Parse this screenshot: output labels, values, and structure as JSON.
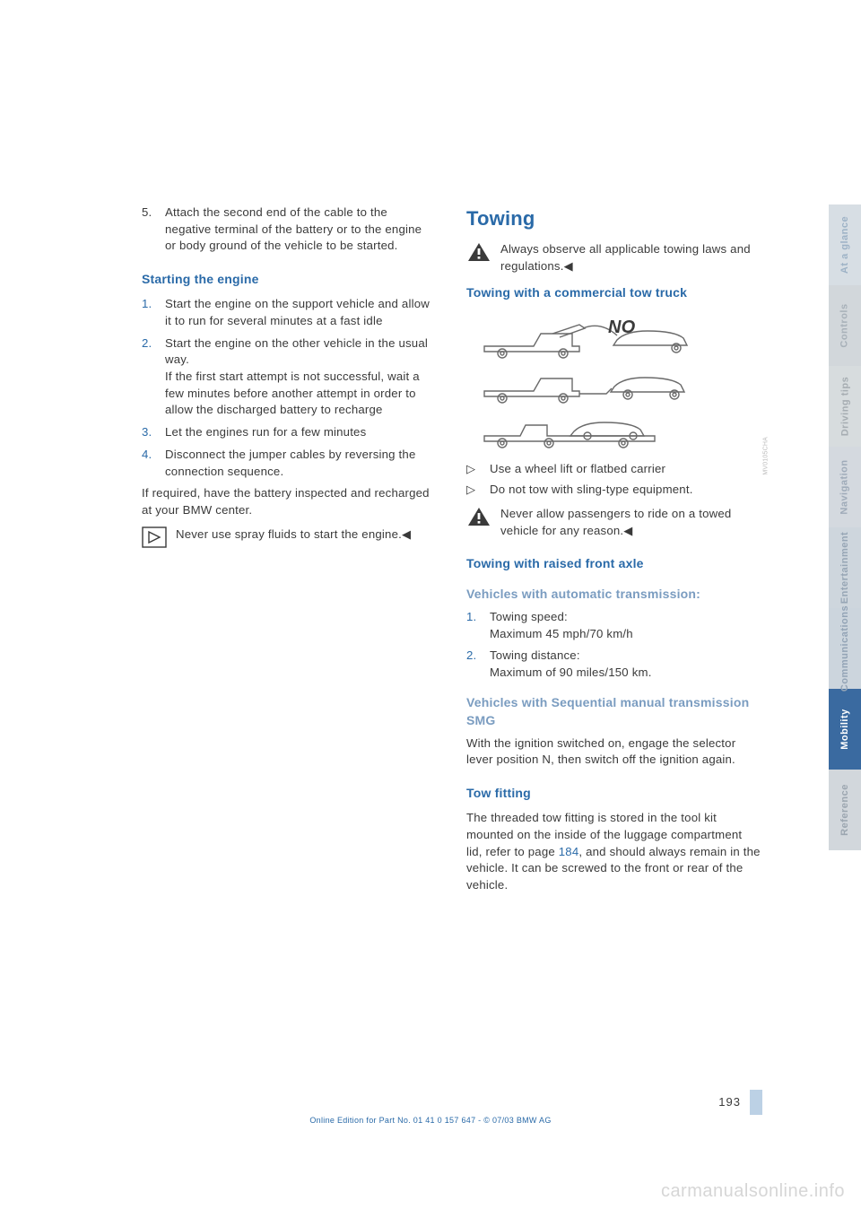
{
  "left_col": {
    "step5": {
      "num": "5.",
      "text": "Attach the second end of the cable to the negative terminal of the battery or to the engine or body ground of the vehicle to be started."
    },
    "h_starting": "Starting the engine",
    "steps": [
      {
        "num": "1.",
        "text": "Start the engine on the support vehicle and allow it to run for several minutes at a fast idle"
      },
      {
        "num": "2.",
        "text": "Start the engine on the other vehicle in the usual way.\nIf the first start attempt is not successful, wait a few minutes before another attempt in order to allow the discharged battery to recharge"
      },
      {
        "num": "3.",
        "text": "Let the engines run for a few minutes"
      },
      {
        "num": "4.",
        "text": "Disconnect the jumper cables by reversing the connection sequence."
      }
    ],
    "para_after": "If required, have the battery inspected and recharged at your BMW center.",
    "note": "Never use spray fluids to start the engine.",
    "note_end": "◀"
  },
  "right_col": {
    "h_towing": "Towing",
    "warn1": "Always observe all applicable towing laws and regulations.",
    "warn_end": "◀",
    "h_commercial": "Towing with a commercial tow truck",
    "diagram": {
      "no_label": "NO",
      "credit": "MV0105CHA",
      "bg": "#ffffff",
      "stroke": "#6a6a6a",
      "stroke_width": 1.4,
      "rows": 3
    },
    "bullets": [
      "Use a wheel lift or flatbed carrier",
      "Do not tow with sling-type equipment."
    ],
    "warn2": "Never allow passengers to ride on a towed vehicle for any reason.",
    "h_raised": "Towing with raised front axle",
    "h_auto": "Vehicles with automatic transmission:",
    "auto_steps": [
      {
        "num": "1.",
        "text": "Towing speed:\nMaximum 45 mph/70 km/h"
      },
      {
        "num": "2.",
        "text": "Towing distance:\nMaximum of 90 miles/150 km."
      }
    ],
    "h_smg": "Vehicles with Sequential manual transmission SMG",
    "smg_text": "With the ignition switched on, engage the selector lever position N, then switch off the ignition again.",
    "h_towfit": "Tow fitting",
    "towfit_text_a": "The threaded tow fitting is stored in the tool kit mounted on the inside of the luggage compartment lid, refer to page ",
    "towfit_pageref": "184",
    "towfit_text_b": ", and should always remain in the vehicle. It can be screwed to the front or rear of the vehicle."
  },
  "tabs": [
    {
      "label": "At a glance",
      "bg": "#d7dee4",
      "fg": "#9db2c6"
    },
    {
      "label": "Controls",
      "bg": "#d2d7db",
      "fg": "#a8b1b9"
    },
    {
      "label": "Driving tips",
      "bg": "#d7dcde",
      "fg": "#a6adb2"
    },
    {
      "label": "Navigation",
      "bg": "#d4d9df",
      "fg": "#9fabb9"
    },
    {
      "label": "Entertainment",
      "bg": "#ced6dd",
      "fg": "#97a6b5"
    },
    {
      "label": "Communications",
      "bg": "#ccd5dd",
      "fg": "#93a4b6"
    },
    {
      "label": "Mobility",
      "bg": "#3a6aa0",
      "fg": "#ffffff"
    },
    {
      "label": "Reference",
      "bg": "#d2d7dc",
      "fg": "#9ca6b0"
    }
  ],
  "page_number": "193",
  "footer": "Online Edition for Part No. 01 41 0 157 647 - © 07/03 BMW AG",
  "watermark": "carmanualsonline.info"
}
